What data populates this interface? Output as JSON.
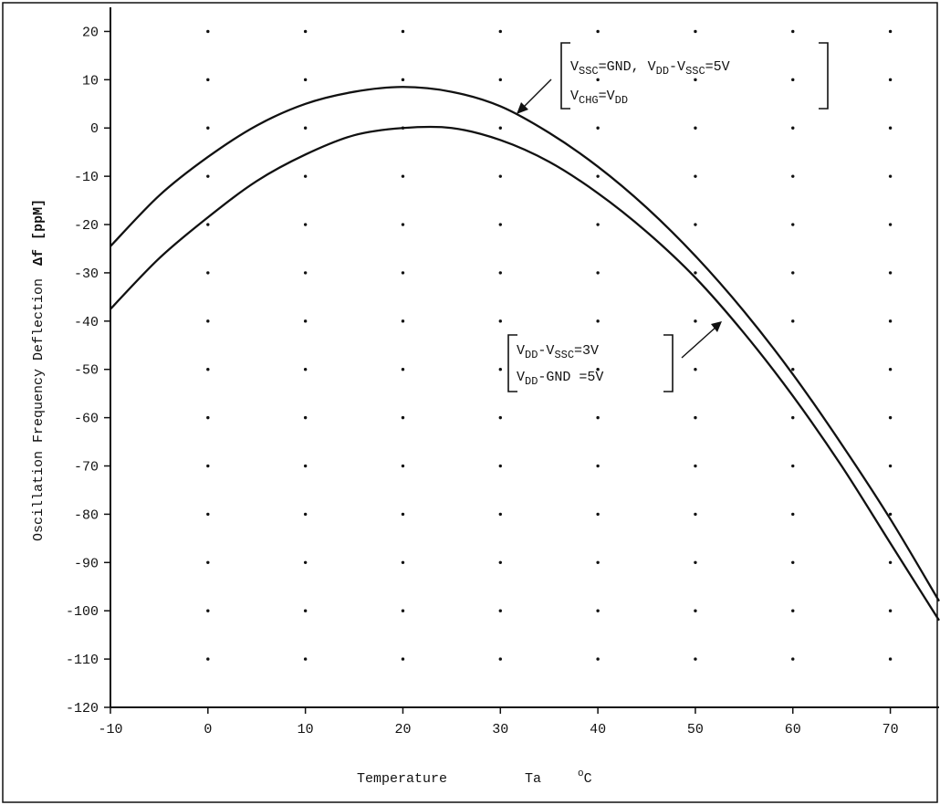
{
  "chart_data": {
    "type": "line",
    "title": "",
    "xlabel": "Temperature",
    "xlabel_symbol": "Ta",
    "xlabel_unit": "oC",
    "ylabel": "Oscillation Frequency Deflection",
    "ylabel_symbol": "Δf",
    "ylabel_unit": "[ppM]",
    "xlim": [
      -10,
      75
    ],
    "ylim": [
      -120,
      25
    ],
    "x_ticks": [
      -10,
      0,
      10,
      20,
      30,
      40,
      50,
      60,
      70
    ],
    "y_ticks": [
      20,
      10,
      0,
      -10,
      -20,
      -30,
      -40,
      -50,
      -60,
      -70,
      -80,
      -90,
      -100,
      -110,
      -120
    ],
    "grid": "dots",
    "legend": "none",
    "series": [
      {
        "x": [
          -10,
          -5,
          0,
          5,
          10,
          15,
          20,
          25,
          30,
          35,
          40,
          45,
          50,
          55,
          60,
          65,
          70,
          75
        ],
        "y": [
          -24.5,
          -14,
          -6,
          0.5,
          5,
          7.5,
          8.5,
          7.5,
          4.5,
          -1,
          -8,
          -16.5,
          -26.5,
          -38,
          -51,
          -65.5,
          -81,
          -98
        ]
      },
      {
        "x": [
          -10,
          -5,
          0,
          5,
          10,
          15,
          20,
          25,
          30,
          35,
          40,
          45,
          50,
          55,
          60,
          65,
          70,
          75
        ],
        "y": [
          -37.5,
          -27,
          -18.5,
          -11,
          -5.5,
          -1.5,
          0,
          0,
          -2.5,
          -7,
          -13.5,
          -21.5,
          -31,
          -42.5,
          -55.5,
          -70,
          -86,
          -102
        ]
      }
    ],
    "annotations": [
      {
        "line1": [
          {
            "t": "V"
          },
          {
            "t": "SSC",
            "sub": true
          },
          {
            "t": "=GND,  V"
          },
          {
            "t": "DD",
            "sub": true
          },
          {
            "t": "-V"
          },
          {
            "t": "SSC",
            "sub": true
          },
          {
            "t": "=5V"
          }
        ],
        "line2": [
          {
            "t": "V"
          },
          {
            "t": "CHG",
            "sub": true
          },
          {
            "t": "=V"
          },
          {
            "t": "DD",
            "sub": true
          }
        ]
      },
      {
        "line1": [
          {
            "t": "V"
          },
          {
            "t": "DD",
            "sub": true
          },
          {
            "t": "-V"
          },
          {
            "t": "SSC",
            "sub": true
          },
          {
            "t": "=3V"
          }
        ],
        "line2": [
          {
            "t": "V"
          },
          {
            "t": "DD",
            "sub": true
          },
          {
            "t": "-GND  =5V"
          }
        ]
      }
    ]
  }
}
